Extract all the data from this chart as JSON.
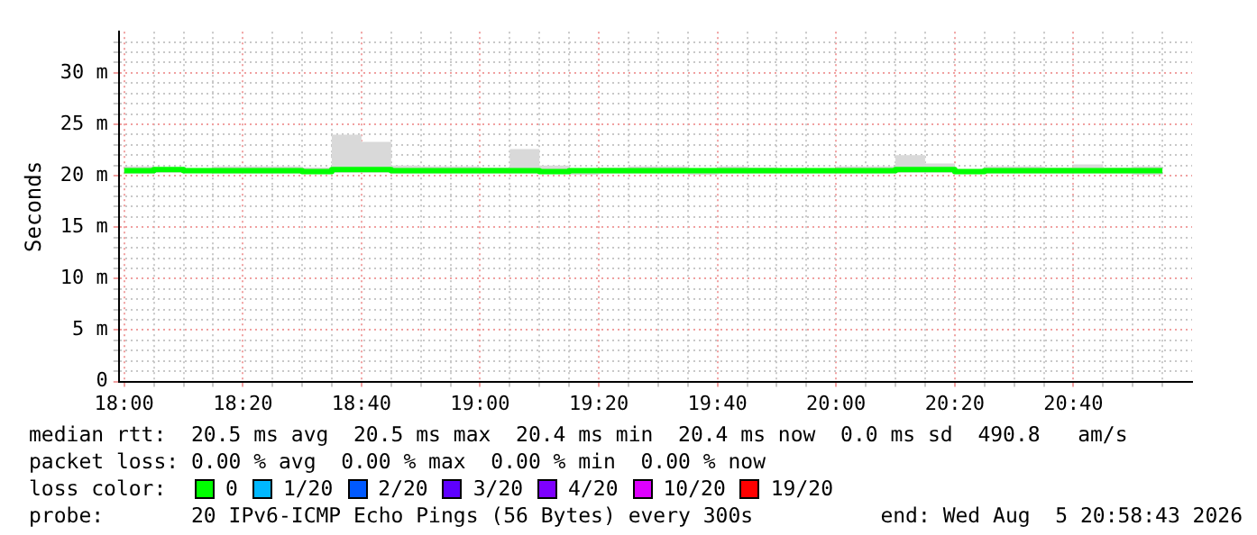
{
  "chart_data": {
    "type": "step",
    "ylabel": "Seconds",
    "xlim": [
      17.985,
      21.0
    ],
    "ylim": [
      0,
      34
    ],
    "xticks": [
      {
        "value": 18,
        "label": "18:00"
      },
      {
        "value": 18.0833,
        "label": null
      },
      {
        "value": 18.1667,
        "label": null
      },
      {
        "value": 18.25,
        "label": null
      },
      {
        "value": 18.3333,
        "label": "18:20"
      },
      {
        "value": 18.4167,
        "label": null
      },
      {
        "value": 18.5,
        "label": null
      },
      {
        "value": 18.5833,
        "label": null
      },
      {
        "value": 18.6667,
        "label": "18:40"
      },
      {
        "value": 18.75,
        "label": null
      },
      {
        "value": 18.8333,
        "label": null
      },
      {
        "value": 18.9167,
        "label": null
      },
      {
        "value": 19,
        "label": "19:00"
      },
      {
        "value": 19.0833,
        "label": null
      },
      {
        "value": 19.1667,
        "label": null
      },
      {
        "value": 19.25,
        "label": null
      },
      {
        "value": 19.3333,
        "label": "19:20"
      },
      {
        "value": 19.4167,
        "label": null
      },
      {
        "value": 19.5,
        "label": null
      },
      {
        "value": 19.5833,
        "label": null
      },
      {
        "value": 19.6667,
        "label": "19:40"
      },
      {
        "value": 19.75,
        "label": null
      },
      {
        "value": 19.8333,
        "label": null
      },
      {
        "value": 19.9167,
        "label": null
      },
      {
        "value": 20,
        "label": "20:00"
      },
      {
        "value": 20.0833,
        "label": null
      },
      {
        "value": 20.1667,
        "label": null
      },
      {
        "value": 20.25,
        "label": null
      },
      {
        "value": 20.3333,
        "label": "20:20"
      },
      {
        "value": 20.4167,
        "label": null
      },
      {
        "value": 20.5,
        "label": null
      },
      {
        "value": 20.5833,
        "label": null
      },
      {
        "value": 20.6667,
        "label": "20:40"
      },
      {
        "value": 20.75,
        "label": null
      },
      {
        "value": 20.8333,
        "label": null
      },
      {
        "value": 20.9167,
        "label": null
      }
    ],
    "yticks": [
      0,
      {
        "value": 1,
        "label": null
      },
      {
        "value": 2,
        "label": null
      },
      {
        "value": 3,
        "label": null
      },
      {
        "value": 4,
        "label": null
      },
      {
        "value": 5,
        "label": "5 m"
      },
      {
        "value": 6,
        "label": null
      },
      {
        "value": 7,
        "label": null
      },
      {
        "value": 8,
        "label": null
      },
      {
        "value": 9,
        "label": null
      },
      {
        "value": 10,
        "label": "10 m"
      },
      {
        "value": 11,
        "label": null
      },
      {
        "value": 12,
        "label": null
      },
      {
        "value": 13,
        "label": null
      },
      {
        "value": 14,
        "label": null
      },
      {
        "value": 15,
        "label": "15 m"
      },
      {
        "value": 16,
        "label": null
      },
      {
        "value": 17,
        "label": null
      },
      {
        "value": 18,
        "label": null
      },
      {
        "value": 19,
        "label": null
      },
      {
        "value": 20,
        "label": "20 m"
      },
      {
        "value": 21,
        "label": null
      },
      {
        "value": 22,
        "label": null
      },
      {
        "value": 23,
        "label": null
      },
      {
        "value": 24,
        "label": null
      },
      {
        "value": 25,
        "label": "25 m"
      },
      {
        "value": 26,
        "label": null
      },
      {
        "value": 27,
        "label": null
      },
      {
        "value": 28,
        "label": null
      },
      {
        "value": 29,
        "label": null
      },
      {
        "value": 30,
        "label": "30 m"
      },
      {
        "value": 31,
        "label": null
      },
      {
        "value": 32,
        "label": null
      },
      {
        "value": 33,
        "label": null
      }
    ],
    "grid": true,
    "legend": false,
    "marker": "none",
    "line_style": "solid",
    "x": [
      18,
      18.0833,
      18.1667,
      18.25,
      18.3333,
      18.4167,
      18.5,
      18.5833,
      18.6667,
      18.75,
      18.8333,
      18.9167,
      19,
      19.0833,
      19.1667,
      19.25,
      19.3333,
      19.4167,
      19.5,
      19.5833,
      19.6667,
      19.75,
      19.8333,
      19.9167,
      20,
      20.0833,
      20.1667,
      20.25,
      20.3333,
      20.4167,
      20.5,
      20.5833,
      20.6667,
      20.75,
      20.8333,
      20.9167
    ],
    "series": [
      {
        "color": "#00ff00",
        "values": [
          20.5,
          20.6,
          20.5,
          20.5,
          20.5,
          20.5,
          20.4,
          20.6,
          20.6,
          20.5,
          20.5,
          20.5,
          20.5,
          20.5,
          20.4,
          20.5,
          20.5,
          20.5,
          20.5,
          20.5,
          20.5,
          20.5,
          20.5,
          20.5,
          20.5,
          20.5,
          20.6,
          20.6,
          20.4,
          20.5,
          20.5,
          20.5,
          20.5,
          20.5,
          20.5,
          20.5
        ],
        "lower": [
          20.2,
          20.3,
          20.3,
          20.2,
          20.2,
          20.2,
          20.2,
          20.3,
          20.3,
          20.2,
          20.2,
          20.2,
          20.2,
          20.2,
          20.2,
          20.1,
          20.2,
          20.2,
          20.2,
          20.1,
          20.2,
          20.2,
          20.2,
          20.2,
          20.2,
          20.2,
          20.3,
          20.3,
          20.2,
          20.2,
          20.2,
          20.2,
          20.2,
          20.2,
          20.1,
          20.1
        ],
        "upper": [
          20.9,
          20.7,
          20.7,
          20.9,
          20.9,
          20.9,
          20.8,
          24.0,
          23.3,
          21.0,
          20.9,
          20.9,
          20.8,
          22.6,
          21.0,
          20.7,
          20.8,
          20.9,
          20.9,
          20.7,
          20.9,
          20.8,
          20.7,
          20.7,
          20.9,
          20.9,
          22.0,
          21.2,
          20.6,
          20.9,
          20.9,
          20.8,
          21.1,
          20.8,
          20.9,
          20.9
        ]
      }
    ],
    "annotations": [
      "median rtt:  20.5 ms avg  20.5 ms max  20.4 ms min  20.4 ms now  0.0 ms sd  490.8   am/s",
      "packet loss: 0.00 % avg  0.00 % max  0.00 % min  0.00 % now",
      "loss color:",
      "0",
      "1/20",
      "2/20",
      "3/20",
      "4/20",
      "10/20",
      "19/20",
      "probe:       20 IPv6-ICMP Echo Pings (56 Bytes) every 300s",
      "end: Wed Aug  5 20:58:43 2026"
    ]
  }
}
